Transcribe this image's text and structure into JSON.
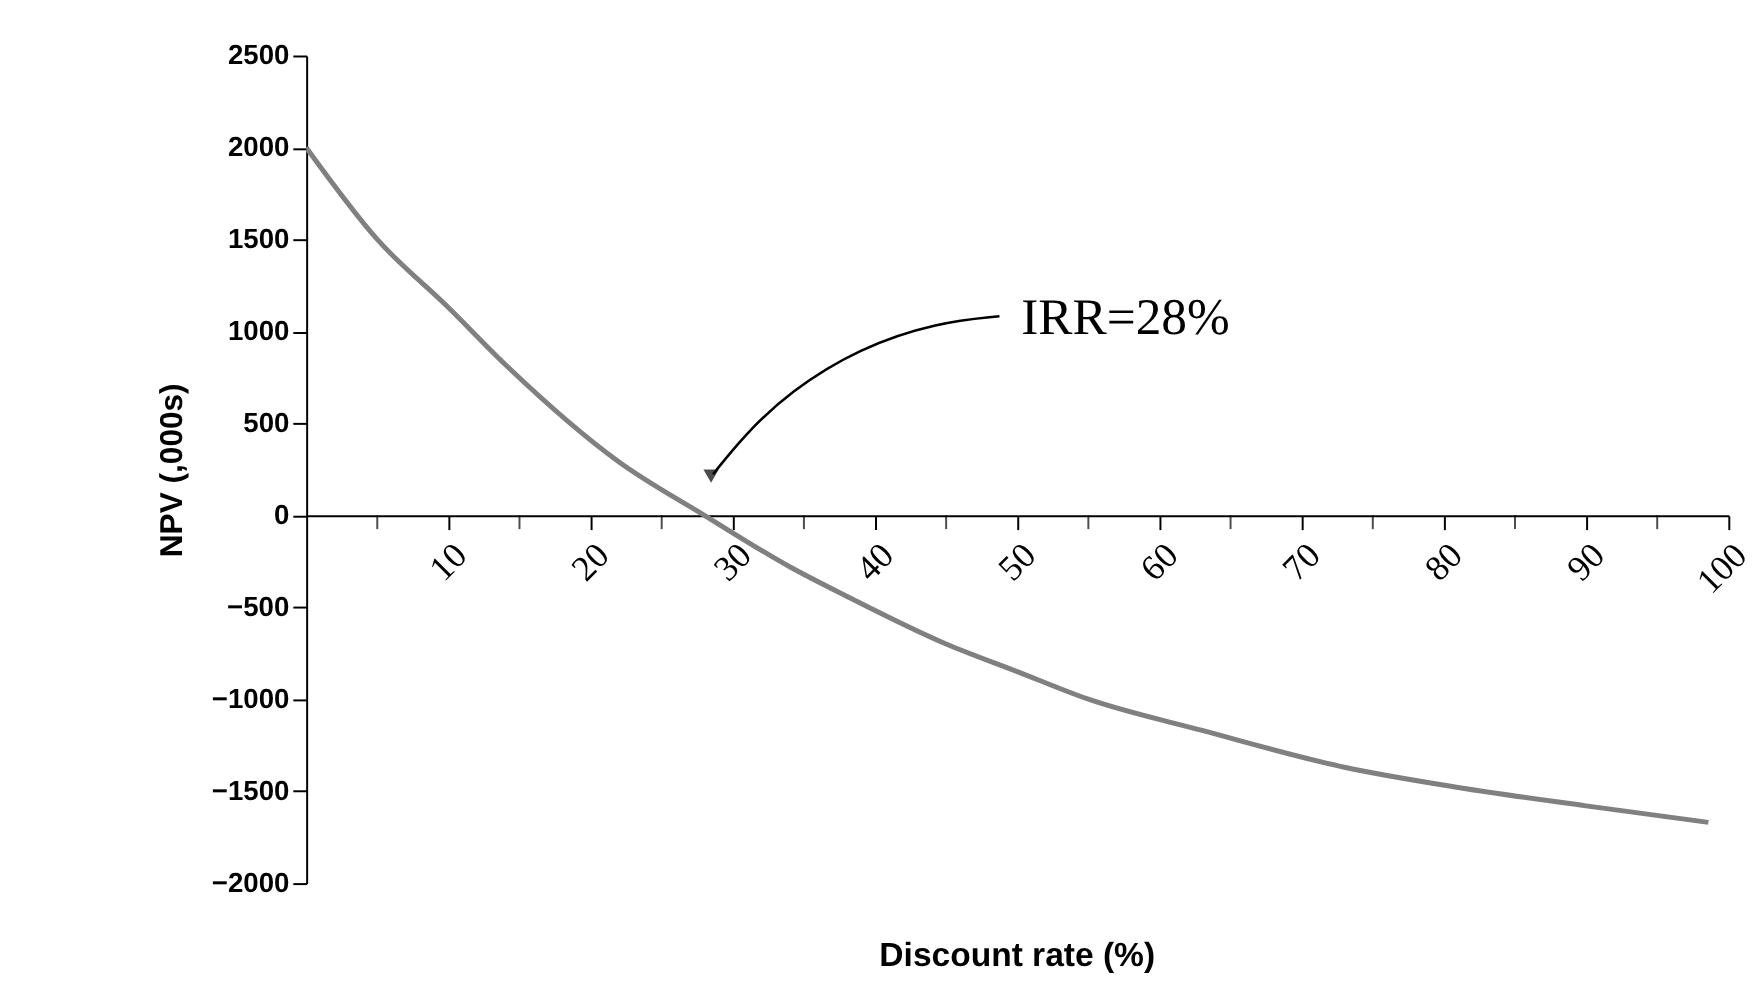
{
  "chart_data": {
    "type": "line",
    "xlabel": "Discount rate (%)",
    "ylabel": "NPV (,000s)",
    "x": [
      0,
      5,
      10,
      14,
      22,
      28,
      34,
      38,
      45,
      50,
      55,
      63,
      73,
      81,
      90,
      98.6
    ],
    "series": [
      {
        "color": "#808080",
        "values": [
          2000,
          1500,
          1130,
          820,
          290,
          0,
          -280,
          -440,
          -700,
          -850,
          -1000,
          -1170,
          -1370,
          -1480,
          -1580,
          -1670
        ]
      }
    ],
    "xlim": [
      0,
      100
    ],
    "xticks": [
      {
        "value": 5,
        "label": null
      },
      10,
      {
        "value": 15,
        "label": null
      },
      20,
      {
        "value": 25,
        "label": null
      },
      30,
      {
        "value": 35,
        "label": null
      },
      40,
      {
        "value": 45,
        "label": null
      },
      50,
      {
        "value": 55,
        "label": null
      },
      60,
      {
        "value": 65,
        "label": null
      },
      70,
      {
        "value": 75,
        "label": null
      },
      80,
      {
        "value": 85,
        "label": null
      },
      90,
      {
        "value": 95,
        "label": null
      },
      100
    ],
    "ylim": [
      -2000,
      2500
    ],
    "yticks": [
      -2000,
      -1500,
      -1000,
      -500,
      0,
      500,
      1000,
      1500,
      2000,
      2500
    ],
    "annotations": [
      "IRR=28%"
    ],
    "grid": false,
    "marker": "none",
    "line_style": "solid"
  }
}
